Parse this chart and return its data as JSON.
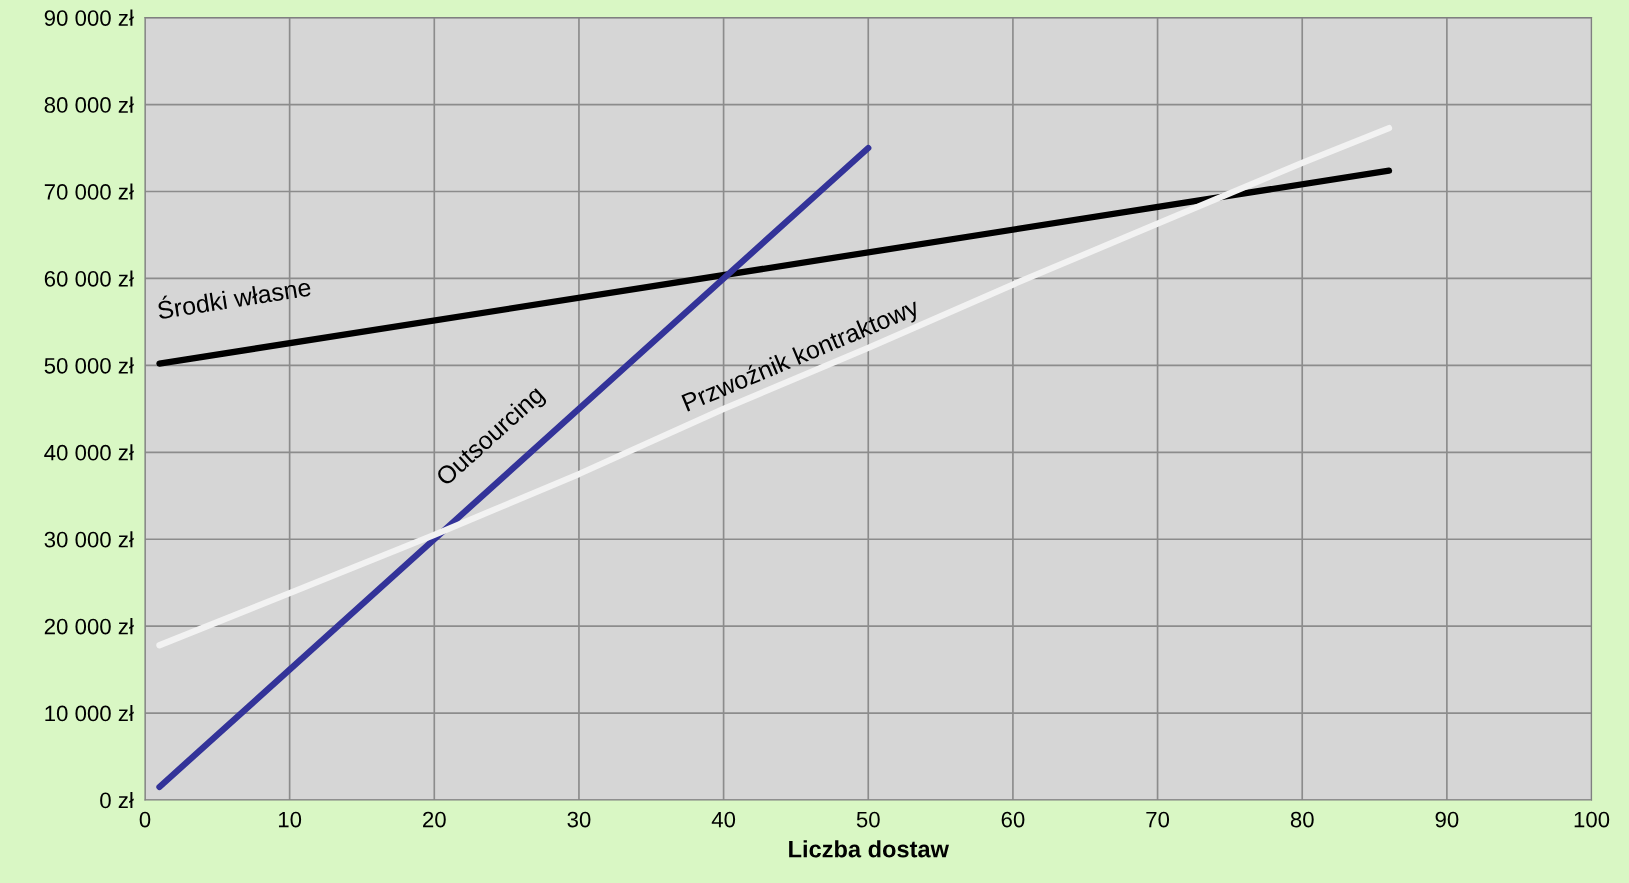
{
  "chart_data": {
    "type": "line",
    "xlabel": "Liczba dostaw",
    "xlim": [
      0,
      100
    ],
    "xticks": [
      0,
      10,
      20,
      30,
      40,
      50,
      60,
      70,
      80,
      90,
      100
    ],
    "ylim": [
      0,
      90000
    ],
    "yticks": [
      {
        "value": 0,
        "label": "0 zł"
      },
      {
        "value": 10000,
        "label": "10 000 zł"
      },
      {
        "value": 20000,
        "label": "20 000 zł"
      },
      {
        "value": 30000,
        "label": "30 000 zł"
      },
      {
        "value": 40000,
        "label": "40 000 zł"
      },
      {
        "value": 50000,
        "label": "50 000 zł"
      },
      {
        "value": 60000,
        "label": "60 000 zł"
      },
      {
        "value": 70000,
        "label": "70 000 zł"
      },
      {
        "value": 80000,
        "label": "80 000 zł"
      },
      {
        "value": 90000,
        "label": "90 000 zł"
      }
    ],
    "grid": true,
    "legend": false,
    "marker": "none",
    "line_style": "solid",
    "series": [
      {
        "name": "Środki własne",
        "color": "#000000",
        "x": [
          1,
          86
        ],
        "values": [
          50200,
          72400
        ]
      },
      {
        "name": "Outsourcing",
        "color": "#333399",
        "x": [
          1,
          50
        ],
        "values": [
          1500,
          75000
        ]
      },
      {
        "name": "Przwoźnik kontraktowy",
        "color": "#f2f2f2",
        "x": [
          1,
          10,
          20,
          30,
          40,
          50,
          60,
          70,
          80,
          86
        ],
        "values": [
          17800,
          23800,
          30500,
          37500,
          45000,
          52000,
          59300,
          66300,
          73300,
          77300
        ]
      }
    ]
  }
}
